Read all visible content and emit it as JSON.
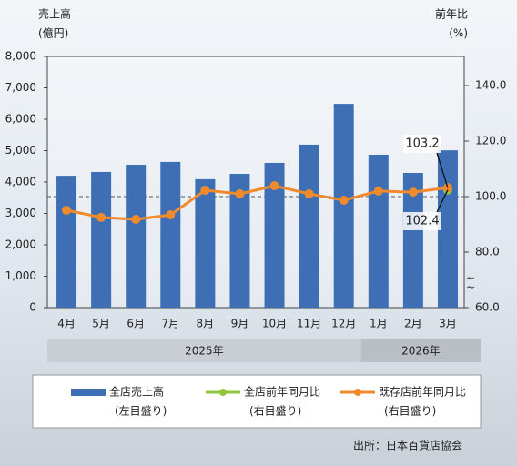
{
  "chart_data": {
    "type": "combo",
    "ylabel": "売上高",
    "ylabel_unit": "(億円)",
    "y2label": "前年比",
    "y2label_unit": "(%)",
    "categories": [
      "4月",
      "5月",
      "6月",
      "7月",
      "8月",
      "9月",
      "10月",
      "11月",
      "12月",
      "1月",
      "2月",
      "3月"
    ],
    "x_groups": [
      {
        "label": "2025年",
        "span": 9
      },
      {
        "label": "2026年",
        "span": 3
      }
    ],
    "ylim": [
      0,
      8000
    ],
    "yticks": [
      0,
      {
        "value": 1000,
        "label": "1,000"
      },
      {
        "value": 2000,
        "label": "2,000"
      },
      {
        "value": 3000,
        "label": "3,000"
      },
      {
        "value": 4000,
        "label": "4,000"
      },
      {
        "value": 5000,
        "label": "5,000"
      },
      {
        "value": 6000,
        "label": "6,000"
      },
      {
        "value": 7000,
        "label": "7,000"
      },
      {
        "value": 8000,
        "label": "8,000"
      }
    ],
    "y2lim": [
      60,
      150.5
    ],
    "y2ticks": [
      {
        "value": 60,
        "label": "60.0"
      },
      {
        "value": 80,
        "label": "80.0"
      },
      {
        "value": 100,
        "label": "100.0"
      },
      {
        "value": 120,
        "label": "120.0"
      },
      {
        "value": 140,
        "label": "140.0"
      }
    ],
    "y2_reference": 100,
    "series": [
      {
        "name": "全店売上高",
        "legend_note": "(左目盛り)",
        "type": "bar",
        "color": "#3e6fb5",
        "values": [
          4200,
          4320,
          4550,
          4640,
          4090,
          4260,
          4610,
          5190,
          6490,
          4870,
          4290,
          5010
        ]
      },
      {
        "name": "全店前年同月比",
        "legend_note": "(右目盛り)",
        "type": "line",
        "axis": "y2",
        "color": "#8dc63f",
        "values": [
          null,
          null,
          null,
          null,
          null,
          null,
          null,
          null,
          null,
          null,
          null,
          102.4
        ],
        "value_labels": [
          null,
          null,
          null,
          null,
          null,
          null,
          null,
          null,
          null,
          null,
          null,
          "102.4"
        ]
      },
      {
        "name": "既存店前年同月比",
        "legend_note": "(右目盛り)",
        "type": "line",
        "axis": "y2",
        "color": "#f08a2c",
        "values": [
          95.1,
          92.5,
          91.8,
          93.4,
          102.3,
          101.0,
          103.9,
          101.0,
          98.7,
          102.0,
          101.6,
          103.2
        ],
        "value_labels": [
          null,
          null,
          null,
          null,
          null,
          null,
          null,
          null,
          null,
          null,
          null,
          "103.2"
        ]
      }
    ],
    "source": "出所：日本百貨店協会"
  }
}
